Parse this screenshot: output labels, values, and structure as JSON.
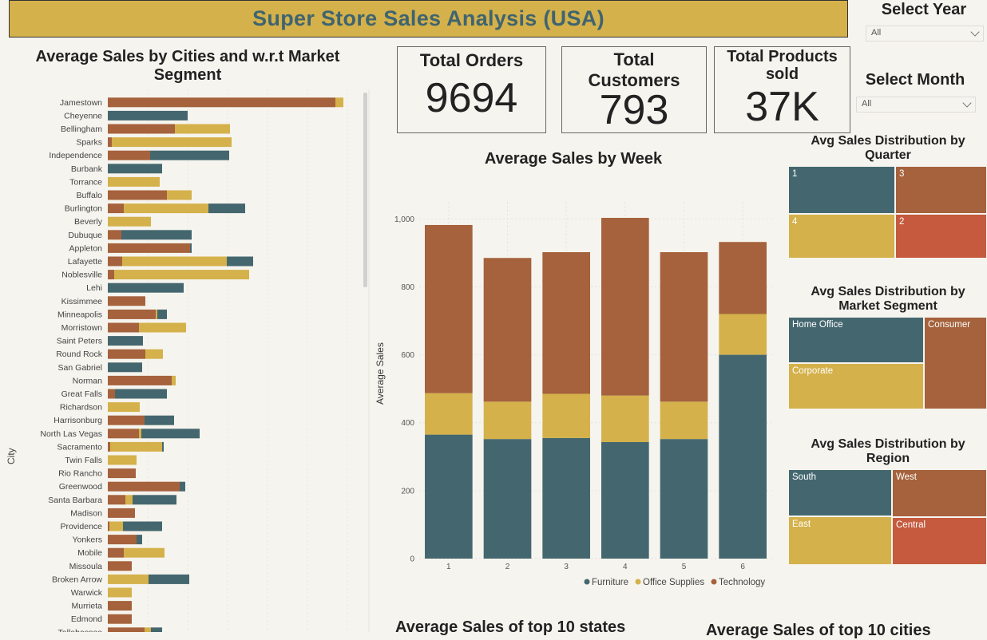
{
  "header": {
    "title": "Super Store Sales Analysis (USA)"
  },
  "colors": {
    "furniture": "#44676f",
    "office_supplies": "#d4b14a",
    "technology": "#a5623c",
    "red": "#c55a3e",
    "title_bg": "#d4b14a",
    "title_text": "#3f6470"
  },
  "filters": {
    "year": {
      "label": "Select Year",
      "value": "All"
    },
    "month": {
      "label": "Select Month",
      "value": "All"
    }
  },
  "kpis": [
    {
      "label": "Total Orders",
      "value": "9694"
    },
    {
      "label": "Total Customers",
      "value": "793"
    },
    {
      "label": "Total Products sold",
      "value": "37K"
    }
  ],
  "city_chart": {
    "title": "Average Sales by Cities and w.r.t Market Segment",
    "ylabel": "City",
    "rows": [
      {
        "city": "Jamestown",
        "tech": 285,
        "office": 10,
        "furn": 0
      },
      {
        "city": "Cheyenne",
        "tech": 0,
        "office": 0,
        "furn": 100
      },
      {
        "city": "Bellingham",
        "tech": 84,
        "office": 69,
        "furn": 0
      },
      {
        "city": "Sparks",
        "tech": 5,
        "office": 150,
        "furn": 0
      },
      {
        "city": "Independence",
        "tech": 53,
        "office": 0,
        "furn": 99
      },
      {
        "city": "Burbank",
        "tech": 0,
        "office": 0,
        "furn": 68
      },
      {
        "city": "Torrance",
        "tech": 0,
        "office": 65,
        "furn": 0
      },
      {
        "city": "Buffalo",
        "tech": 74,
        "office": 31,
        "furn": 0
      },
      {
        "city": "Burlington",
        "tech": 20,
        "office": 106,
        "furn": 46
      },
      {
        "city": "Beverly",
        "tech": 0,
        "office": 54,
        "furn": 0
      },
      {
        "city": "Dubuque",
        "tech": 17,
        "office": 0,
        "furn": 88
      },
      {
        "city": "Appleton",
        "tech": 103,
        "office": 0,
        "furn": 2
      },
      {
        "city": "Lafayette",
        "tech": 18,
        "office": 131,
        "furn": 33
      },
      {
        "city": "Noblesville",
        "tech": 8,
        "office": 169,
        "furn": 0
      },
      {
        "city": "Lehi",
        "tech": 0,
        "office": 0,
        "furn": 95
      },
      {
        "city": "Kissimmee",
        "tech": 47,
        "office": 0,
        "furn": 0
      },
      {
        "city": "Minneapolis",
        "tech": 60,
        "office": 2,
        "furn": 12
      },
      {
        "city": "Morristown",
        "tech": 39,
        "office": 59,
        "furn": 0
      },
      {
        "city": "Saint Peters",
        "tech": 0,
        "office": 0,
        "furn": 44
      },
      {
        "city": "Round Rock",
        "tech": 47,
        "office": 22,
        "furn": 0
      },
      {
        "city": "San Gabriel",
        "tech": 0,
        "office": 0,
        "furn": 43
      },
      {
        "city": "Norman",
        "tech": 80,
        "office": 5,
        "furn": 0
      },
      {
        "city": "Great Falls",
        "tech": 9,
        "office": 0,
        "furn": 65
      },
      {
        "city": "Richardson",
        "tech": 0,
        "office": 40,
        "furn": 0
      },
      {
        "city": "Harrisonburg",
        "tech": 46,
        "office": 0,
        "furn": 37
      },
      {
        "city": "North Las Vegas",
        "tech": 39,
        "office": 3,
        "furn": 73
      },
      {
        "city": "Sacramento",
        "tech": 3,
        "office": 65,
        "furn": 2
      },
      {
        "city": "Twin Falls",
        "tech": 0,
        "office": 36,
        "furn": 0
      },
      {
        "city": "Rio Rancho",
        "tech": 35,
        "office": 0,
        "furn": 0
      },
      {
        "city": "Greenwood",
        "tech": 90,
        "office": 0,
        "furn": 7
      },
      {
        "city": "Santa Barbara",
        "tech": 22,
        "office": 9,
        "furn": 55
      },
      {
        "city": "Madison",
        "tech": 34,
        "office": 0,
        "furn": 0
      },
      {
        "city": "Providence",
        "tech": 2,
        "office": 17,
        "furn": 49
      },
      {
        "city": "Yonkers",
        "tech": 36,
        "office": 0,
        "furn": 7
      },
      {
        "city": "Mobile",
        "tech": 20,
        "office": 51,
        "furn": 0
      },
      {
        "city": "Missoula",
        "tech": 30,
        "office": 0,
        "furn": 0
      },
      {
        "city": "Broken Arrow",
        "tech": 0,
        "office": 51,
        "furn": 51
      },
      {
        "city": "Warwick",
        "tech": 0,
        "office": 30,
        "furn": 0
      },
      {
        "city": "Murrieta",
        "tech": 30,
        "office": 0,
        "furn": 0
      },
      {
        "city": "Edmond",
        "tech": 30,
        "office": 0,
        "furn": 0
      },
      {
        "city": "Tallahassee",
        "tech": 46,
        "office": 8,
        "furn": 14
      }
    ]
  },
  "chart_data": {
    "type": "bar",
    "title": "Average Sales by Week",
    "xlabel": "",
    "ylabel": "Average Sales",
    "categories": [
      "1",
      "2",
      "3",
      "4",
      "5",
      "6"
    ],
    "series": [
      {
        "name": "Furniture",
        "values": [
          365,
          352,
          355,
          343,
          352,
          600
        ]
      },
      {
        "name": "Office Supplies",
        "values": [
          122,
          110,
          130,
          137,
          110,
          120
        ]
      },
      {
        "name": "Technology",
        "values": [
          495,
          423,
          417,
          523,
          440,
          212
        ]
      }
    ],
    "ylim": [
      0,
      1050
    ],
    "yticks": [
      0,
      200,
      400,
      600,
      800,
      1000
    ],
    "ytick_labels": [
      "0",
      "200",
      "400",
      "600",
      "800",
      "1,000"
    ],
    "grid": true,
    "legend": "bottom-right"
  },
  "treemaps": {
    "quarter": {
      "title": "Avg Sales Distribution by Quarter",
      "labels": [
        "1",
        "3",
        "4",
        "2"
      ]
    },
    "segment": {
      "title": "Avg Sales Distribution by Market Segment",
      "labels": [
        "Home Office",
        "Consumer",
        "Corporate"
      ]
    },
    "region": {
      "title": "Avg Sales Distribution by Region",
      "labels": [
        "South",
        "West",
        "East",
        "Central"
      ]
    }
  },
  "bottom_titles": {
    "states": "Average Sales of top 10 states",
    "cities": "Average Sales of top 10 cities"
  }
}
